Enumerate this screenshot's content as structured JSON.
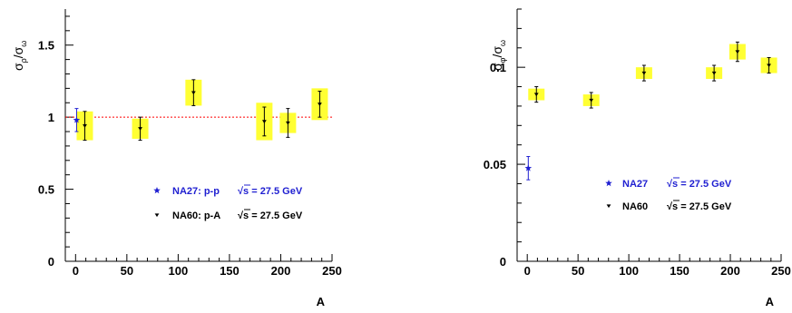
{
  "chart_data": [
    {
      "type": "scatter",
      "title": "",
      "xlabel": "A",
      "ylabel": "σρ/σω",
      "ylabel_parts": {
        "base": "σ",
        "sub1": "ρ",
        "slash": "/",
        "base2": "σ",
        "sub2": "ω"
      },
      "xlim": [
        -10,
        250
      ],
      "ylim": [
        0,
        1.75
      ],
      "x_ticks": [
        "0",
        "50",
        "100",
        "150",
        "200",
        "250"
      ],
      "x_tick_values": [
        0,
        50,
        100,
        150,
        200,
        250
      ],
      "y_ticks": [
        "0",
        "0.5",
        "1",
        "1.5"
      ],
      "y_tick_values": [
        0,
        0.5,
        1,
        1.5
      ],
      "reference_line": {
        "y": 1,
        "color": "#ff0000",
        "style": "dotted"
      },
      "series": [
        {
          "name": "NA27: p-p",
          "energy_label": "√s = 27.5 GeV",
          "marker": "star",
          "color": "#1f1fd1",
          "points": [
            {
              "x": 1,
              "y": 0.98,
              "err": 0.08
            }
          ]
        },
        {
          "name": "NA60: p-A",
          "energy_label": "√s = 27.5 GeV",
          "marker": "triangle-down",
          "color": "#000000",
          "syst_color": "#ffff33",
          "points": [
            {
              "x": 9,
              "y": 0.94,
              "err": 0.1,
              "syst": 0.1
            },
            {
              "x": 63,
              "y": 0.92,
              "err": 0.08,
              "syst": 0.07
            },
            {
              "x": 115,
              "y": 1.17,
              "err": 0.09,
              "syst": 0.09
            },
            {
              "x": 184,
              "y": 0.97,
              "err": 0.1,
              "syst": 0.13
            },
            {
              "x": 207,
              "y": 0.96,
              "err": 0.1,
              "syst": 0.07
            },
            {
              "x": 238,
              "y": 1.09,
              "err": 0.09,
              "syst": 0.11
            }
          ]
        }
      ],
      "legend_position": "lower-right"
    },
    {
      "type": "scatter",
      "title": "",
      "xlabel": "A",
      "ylabel": "σφ/σω",
      "ylabel_parts": {
        "base": "σ",
        "sub1": "φ",
        "slash": "/",
        "base2": "σ",
        "sub2": "ω"
      },
      "xlim": [
        -10,
        250
      ],
      "ylim": [
        0,
        0.13
      ],
      "x_ticks": [
        "0",
        "50",
        "100",
        "150",
        "200",
        "250"
      ],
      "x_tick_values": [
        0,
        50,
        100,
        150,
        200,
        250
      ],
      "y_ticks": [
        "0",
        "0.05",
        "0.1"
      ],
      "y_tick_values": [
        0,
        0.05,
        0.1
      ],
      "series": [
        {
          "name": "NA27",
          "energy_label": "√s = 27.5 GeV",
          "marker": "star",
          "color": "#1f1fd1",
          "points": [
            {
              "x": 1,
              "y": 0.048,
              "err": 0.006
            }
          ]
        },
        {
          "name": "NA60",
          "energy_label": "√s = 27.5 GeV",
          "marker": "triangle-down",
          "color": "#000000",
          "syst_color": "#ffff33",
          "points": [
            {
              "x": 9,
              "y": 0.086,
              "err": 0.004,
              "syst": 0.003
            },
            {
              "x": 63,
              "y": 0.083,
              "err": 0.004,
              "syst": 0.003
            },
            {
              "x": 115,
              "y": 0.097,
              "err": 0.004,
              "syst": 0.003
            },
            {
              "x": 184,
              "y": 0.097,
              "err": 0.004,
              "syst": 0.003
            },
            {
              "x": 207,
              "y": 0.108,
              "err": 0.005,
              "syst": 0.004
            },
            {
              "x": 238,
              "y": 0.101,
              "err": 0.004,
              "syst": 0.004
            }
          ]
        }
      ],
      "legend_position": "lower-right"
    }
  ]
}
